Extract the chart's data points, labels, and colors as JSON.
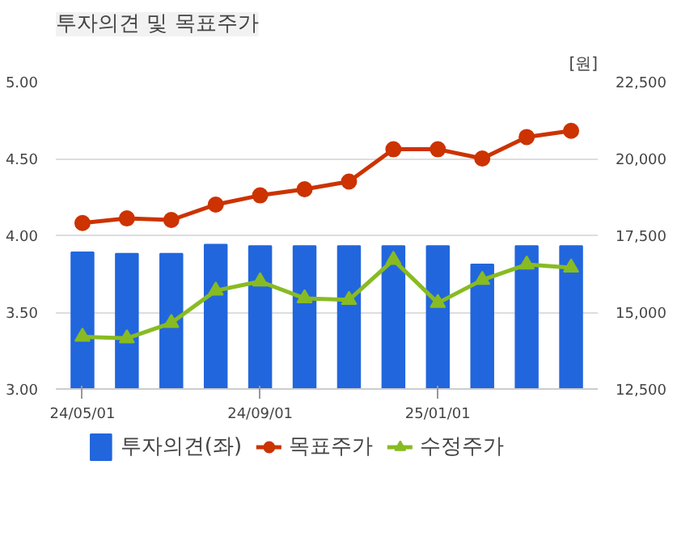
{
  "chart_data": {
    "type": "bar",
    "title": "투자의견 및 목표주가",
    "y2label": "[원]",
    "categories": [
      "24/05/01",
      null,
      null,
      null,
      "24/09/01",
      null,
      null,
      null,
      "25/01/01",
      null,
      null,
      null
    ],
    "series": [
      {
        "name": "투자의견(좌)",
        "color": "#2266dd",
        "values": [
          3.89,
          3.88,
          3.88,
          3.94,
          3.93,
          3.93,
          3.93,
          3.93,
          3.93,
          3.81,
          3.93,
          3.93
        ]
      },
      {
        "name": "목표주가",
        "type": "line",
        "axis": "y2",
        "marker": "circle",
        "color": "#cc3300",
        "values": [
          17900,
          18050,
          18000,
          18500,
          18800,
          19000,
          19250,
          20300,
          20300,
          20000,
          20700,
          20900
        ]
      },
      {
        "name": "수정주가",
        "type": "line",
        "axis": "y2",
        "marker": "triangle",
        "color": "#88bb22",
        "values": [
          14200,
          14150,
          14650,
          15700,
          16000,
          15450,
          15400,
          16700,
          15300,
          16050,
          16550,
          16450
        ]
      }
    ],
    "ylim": [
      3.0,
      5.0
    ],
    "yticks": [
      {
        "value": 3,
        "label": "3.00"
      },
      {
        "value": 3.5,
        "label": "3.50"
      },
      {
        "value": 4,
        "label": "4.00"
      },
      {
        "value": 4.5,
        "label": "4.50"
      },
      {
        "value": 5,
        "label": "5.00"
      }
    ],
    "y2lim": [
      12500,
      22500
    ],
    "y2ticks": [
      {
        "value": 12500,
        "label": "12,500"
      },
      {
        "value": 15000,
        "label": "15,000"
      },
      {
        "value": 17500,
        "label": "17,500"
      },
      {
        "value": 20000,
        "label": "20,000"
      },
      {
        "value": 22500,
        "label": "22,500"
      }
    ],
    "grid": "y",
    "legend": "bottom"
  }
}
